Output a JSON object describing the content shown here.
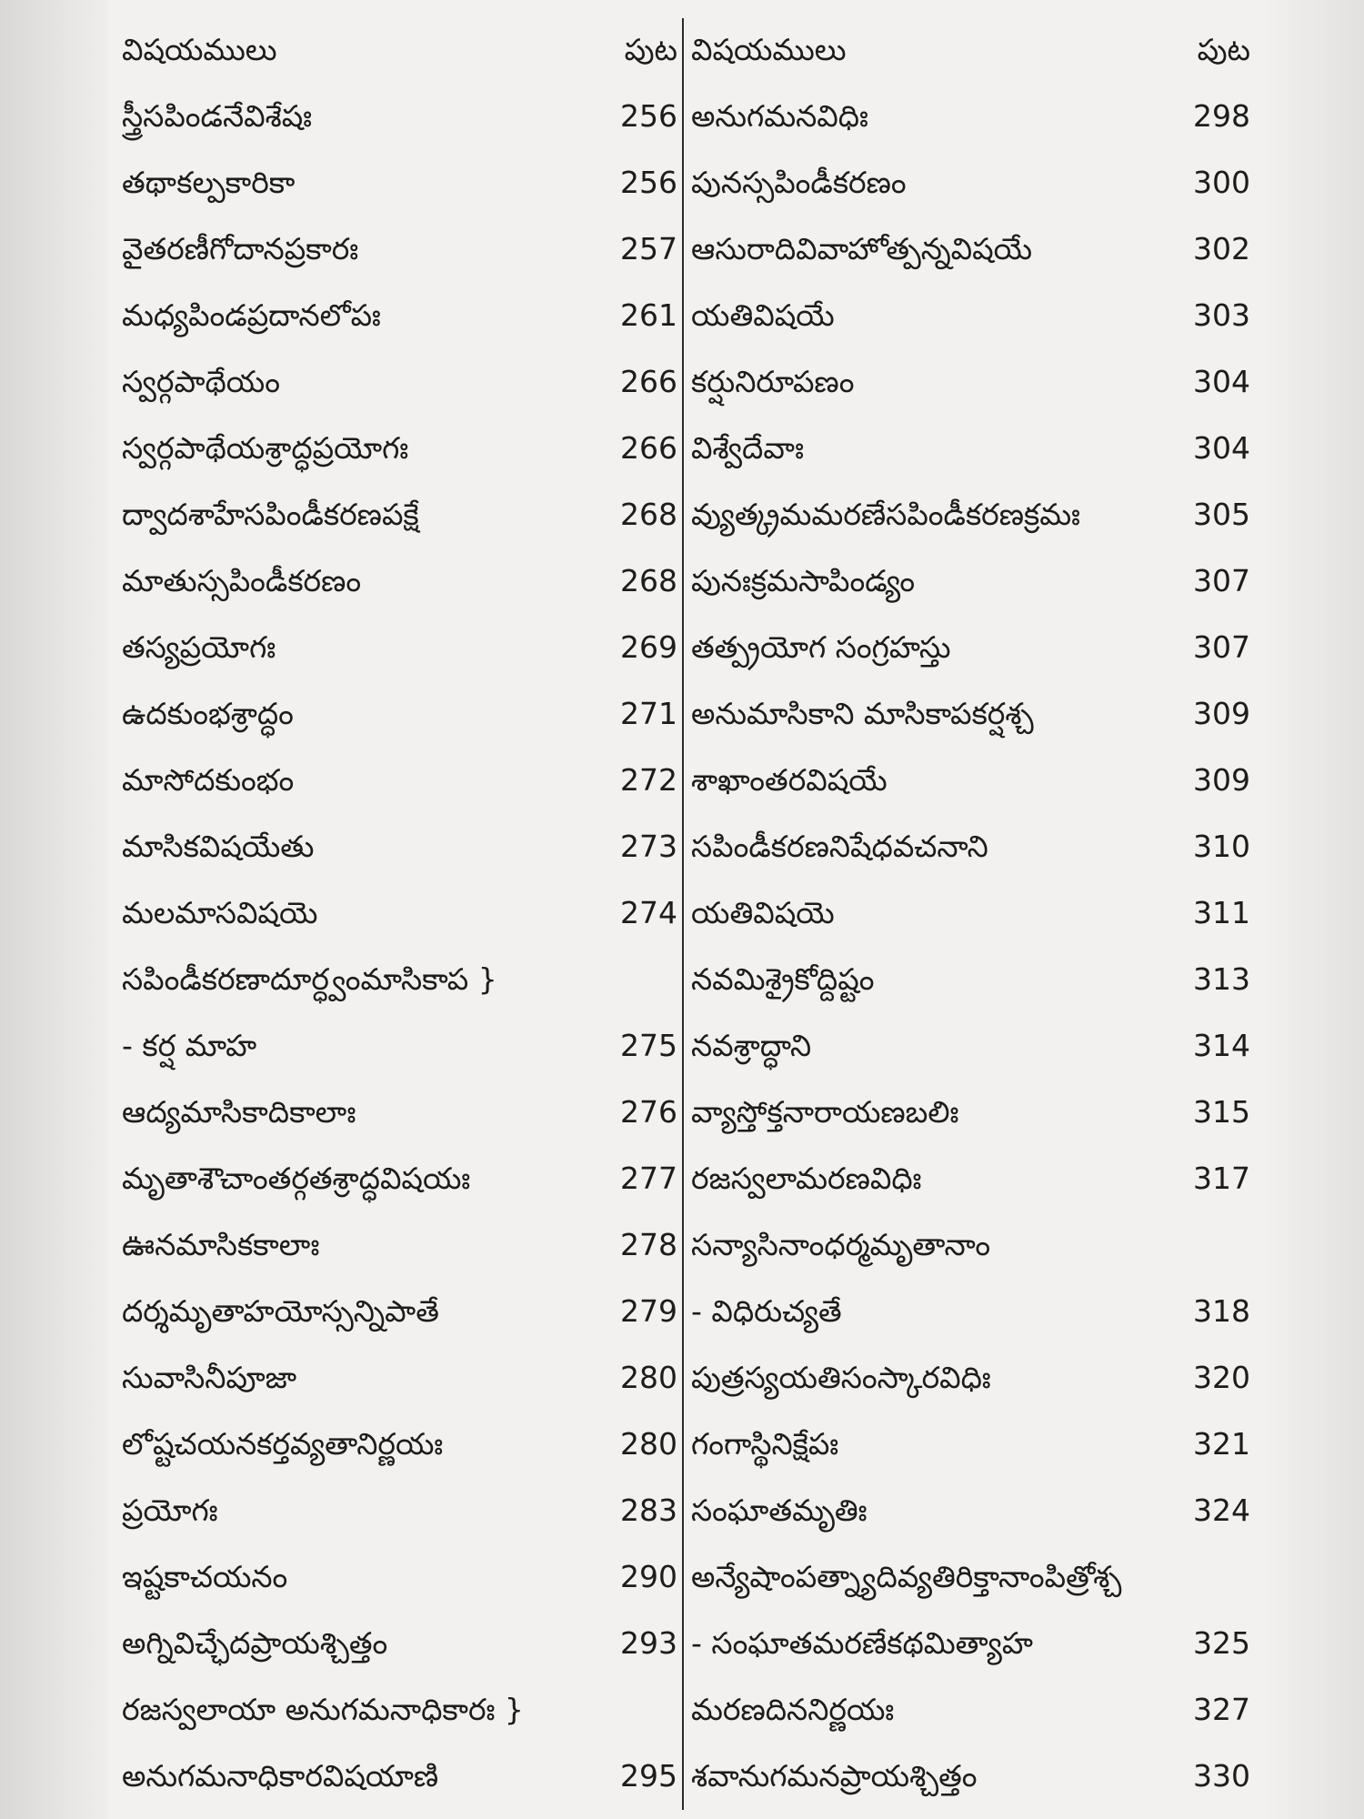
{
  "header": {
    "left_subject": "విషయములు",
    "left_page": "పుట",
    "right_subject": "విషయములు",
    "right_page": "పుట"
  },
  "rows": [
    {
      "left": "స్త్రీసపిండనేవిశేషః",
      "left_page": "256",
      "right": "అనుగమనవిధిః",
      "right_page": "298"
    },
    {
      "left": "తథాకల్పకారికా",
      "left_page": "256",
      "right": "పునస్సపిండీకరణం",
      "right_page": "300"
    },
    {
      "left": "వైతరణీగోదానప్రకారః",
      "left_page": "257",
      "right": "ఆసురాదివివాహోత్పన్నవిషయే",
      "right_page": "302"
    },
    {
      "left": "మధ్యపిండప్రదానలోపః",
      "left_page": "261",
      "right": "యతివిషయే",
      "right_page": "303"
    },
    {
      "left": "స్వర్గపాథేయం",
      "left_page": "266",
      "right": "కర్షునిరూపణం",
      "right_page": "304"
    },
    {
      "left": "స్వర్గపాథేయశ్రాద్ధప్రయోగః",
      "left_page": "266",
      "right": "విశ్వేదేవాః",
      "right_page": "304"
    },
    {
      "left": "ద్వాదశాహేసపిండీకరణపక్షే",
      "left_page": "268",
      "right": "వ్యుత్క్రమమరణేసపిండీకరణక్రమః",
      "right_page": "305"
    },
    {
      "left": "మాతుస్సపిండీకరణం",
      "left_page": "268",
      "right": "పునఃక్రమసాపిండ్యం",
      "right_page": "307"
    },
    {
      "left": "తస్యప్రయోగః",
      "left_page": "269",
      "right": "తత్ప్రయోగ సంగ్రహస్తు",
      "right_page": "307"
    },
    {
      "left": "ఉదకుంభశ్రాద్ధం",
      "left_page": "271",
      "right": "అనుమాసికాని మాసికాపకర్షశ్చ",
      "right_page": "309"
    },
    {
      "left": "మాసోదకుంభం",
      "left_page": "272",
      "right": "శాఖాంతరవిషయే",
      "right_page": "309"
    },
    {
      "left": "మాసికవిషయేతు",
      "left_page": "273",
      "right": "సపిండీకరణనిషేధవచనాని",
      "right_page": "310"
    },
    {
      "left": "మలమాసవిషయె",
      "left_page": "274",
      "right": "యతివిషయె",
      "right_page": "311"
    },
    {
      "left": "సపిండీకరణాదూర్ధ్వంమాసికాప }",
      "left_page": "",
      "right": "నవమిశ్రైకోద్దిష్టం",
      "right_page": "313"
    },
    {
      "left": "- కర్ష మాహ",
      "left_page": "275",
      "right": "నవశ్రాద్ధాని",
      "right_page": "314"
    },
    {
      "left": "ఆద్యమాసికాదికాలాః",
      "left_page": "276",
      "right": "వ్యాస్తోక్తనారాయణబలిః",
      "right_page": "315"
    },
    {
      "left": "మృతాశౌచాంతర్గతశ్రాద్ధవిషయః",
      "left_page": "277",
      "right": "రజస్వలామరణవిధిః",
      "right_page": "317"
    },
    {
      "left": "ఊనమాసికకాలాః",
      "left_page": "278",
      "right": "సన్యాసినాంధర్మమృతానాం",
      "right_page": ""
    },
    {
      "left": "దర్శమృతాహయోస్సన్నిపాతే",
      "left_page": "279",
      "right": "- విధిరుచ్యతే",
      "right_page": "318"
    },
    {
      "left": "సువాసినీపూజా",
      "left_page": "280",
      "right": "పుత్రస్యయతిసంస్కారవిధిః",
      "right_page": "320"
    },
    {
      "left": "లోష్టచయనకర్తవ్యతానిర్ణయః",
      "left_page": "280",
      "right": "గంగాస్థినిక్షేపః",
      "right_page": "321"
    },
    {
      "left": "ప్రయోగః",
      "left_page": "283",
      "right": "సంఘాతమృతిః",
      "right_page": "324"
    },
    {
      "left": "ఇష్టకాచయనం",
      "left_page": "290",
      "right": "అన్యేషాంపత్న్యాదివ్యతిరిక్తానాంపిత్రోశ్చ",
      "right_page": ""
    },
    {
      "left": "అగ్నివిచ్ఛేదప్రాయశ్చిత్తం",
      "left_page": "293",
      "right": "- సంఘాతమరణేకథమిత్యాహ",
      "right_page": "325"
    },
    {
      "left": "  రజస్వలాయా అనుగమనాధికారః }",
      "left_page": "",
      "right": "మరణదిననిర్ణయః",
      "right_page": "327"
    },
    {
      "left": "అనుగమనాధికారవిషయాణి",
      "left_page": "295",
      "right": "శవానుగమనప్రాయశ్చిత్తం",
      "right_page": "330"
    }
  ]
}
